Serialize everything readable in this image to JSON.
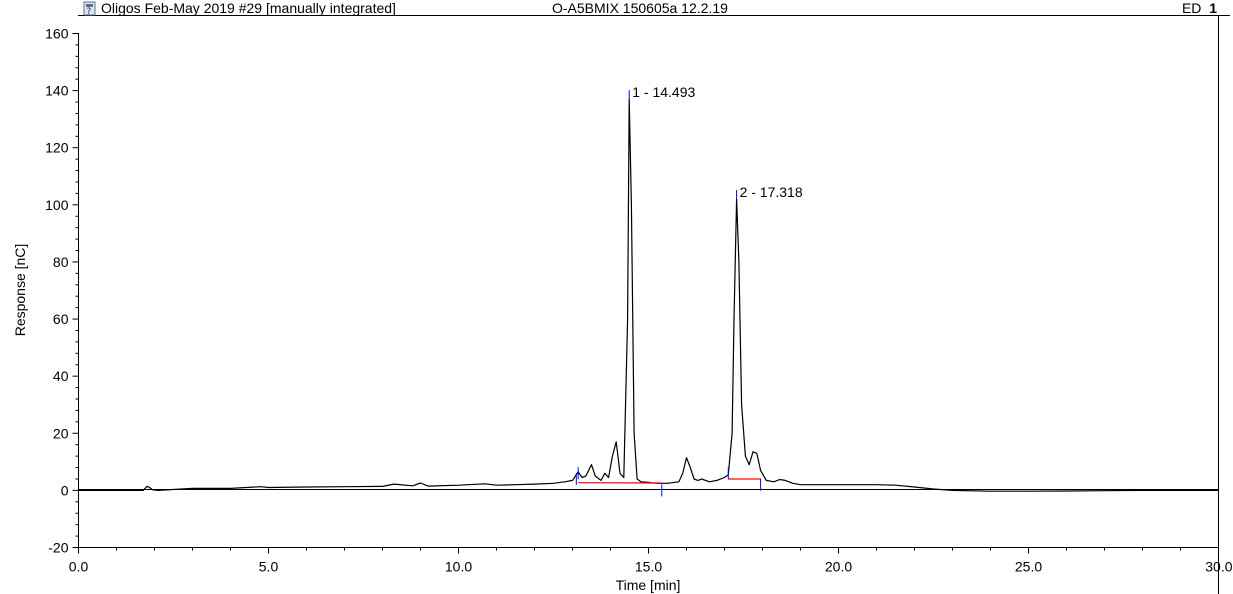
{
  "header": {
    "title": "Oligos Feb-May 2019 #29 [manually integrated]",
    "sample": "O-A5BMIX 150605a 12.2.19",
    "channel_prefix": "ED_",
    "channel_number": "1"
  },
  "chart_data": {
    "type": "line",
    "title": "Oligos Feb-May 2019 #29 [manually integrated]",
    "xlabel": "Time [min]",
    "ylabel": "Response [nC]",
    "xlim": [
      0.0,
      30.0
    ],
    "ylim": [
      -20,
      160
    ],
    "x_ticks": [
      0,
      5,
      10,
      15,
      20,
      25,
      30
    ],
    "x_tick_labels": [
      "0.0",
      "5.0",
      "10.0",
      "15.0",
      "20.0",
      "25.0",
      "30.0"
    ],
    "y_ticks": [
      -20,
      0,
      20,
      40,
      60,
      80,
      100,
      120,
      140,
      160
    ],
    "y_tick_labels": [
      "-20",
      "0",
      "20",
      "40",
      "60",
      "80",
      "100",
      "120",
      "140",
      "160"
    ],
    "grid": false,
    "baseline_color": "#ff0000",
    "trace_color": "#000000",
    "marker_color": "#0000ff",
    "series": [
      {
        "x": [
          0.0,
          1.7,
          1.8,
          1.85,
          1.95,
          2.1,
          3.0,
          4.0,
          4.8,
          5.0,
          6.0,
          7.0,
          8.0,
          8.3,
          8.8,
          9.0,
          9.2,
          10.0,
          10.7,
          11.0,
          11.5,
          12.0,
          12.5,
          12.8,
          13.0,
          13.15,
          13.25,
          13.35,
          13.5,
          13.6,
          13.75,
          13.85,
          13.95,
          14.05,
          14.15,
          14.25,
          14.35,
          14.45,
          14.493,
          14.55,
          14.62,
          14.7,
          14.8,
          15.0,
          15.2,
          15.5,
          15.8,
          15.9,
          16.0,
          16.1,
          16.2,
          16.3,
          16.4,
          16.6,
          16.8,
          17.0,
          17.1,
          17.2,
          17.25,
          17.318,
          17.38,
          17.45,
          17.55,
          17.65,
          17.75,
          17.85,
          17.95,
          18.1,
          18.3,
          18.45,
          18.6,
          18.8,
          19.0,
          20.0,
          21.0,
          21.5,
          22.0,
          22.5,
          23.0,
          24.0,
          25.0,
          26.0,
          27.0,
          28.0,
          29.0,
          30.0
        ],
        "y": [
          0.0,
          0.0,
          1.4,
          1.2,
          0.2,
          0.0,
          0.7,
          0.7,
          1.3,
          1.0,
          1.2,
          1.3,
          1.4,
          2.2,
          1.6,
          2.6,
          1.5,
          1.8,
          2.3,
          1.8,
          2.0,
          2.2,
          2.5,
          3.0,
          3.5,
          6.5,
          4.5,
          5.0,
          9.0,
          5.0,
          3.5,
          6.0,
          4.5,
          12.0,
          17.0,
          6.0,
          4.5,
          60.0,
          137.0,
          100.0,
          20.0,
          4.0,
          3.0,
          2.8,
          2.5,
          2.5,
          3.0,
          6.0,
          11.5,
          8.0,
          4.0,
          3.5,
          4.0,
          3.0,
          3.5,
          4.5,
          5.5,
          20.0,
          60.0,
          102.0,
          80.0,
          30.0,
          12.0,
          9.0,
          13.5,
          13.0,
          7.0,
          3.5,
          3.0,
          3.8,
          3.5,
          2.5,
          2.0,
          2.0,
          2.0,
          1.8,
          1.2,
          0.5,
          0.0,
          -0.3,
          -0.3,
          -0.2,
          -0.1,
          0.0,
          0.0,
          0.0
        ]
      }
    ],
    "peaks": [
      {
        "label": "1 - 14.493",
        "x": 14.493,
        "y": 137
      },
      {
        "label": "2 - 17.318",
        "x": 17.318,
        "y": 102
      }
    ],
    "integration_baselines": [
      {
        "x": [
          13.15,
          15.35
        ],
        "y": [
          2.7,
          2.6
        ]
      },
      {
        "x": [
          17.1,
          17.95
        ],
        "y": [
          4.0,
          4.0
        ]
      }
    ],
    "integration_markers": [
      {
        "x": 13.1,
        "y": 4.0
      },
      {
        "x": 13.15,
        "y": 6.0
      },
      {
        "x": 15.35,
        "y": 0.0
      },
      {
        "x": 17.1,
        "y": 6.0
      },
      {
        "x": 17.95,
        "y": 2.0
      }
    ]
  }
}
